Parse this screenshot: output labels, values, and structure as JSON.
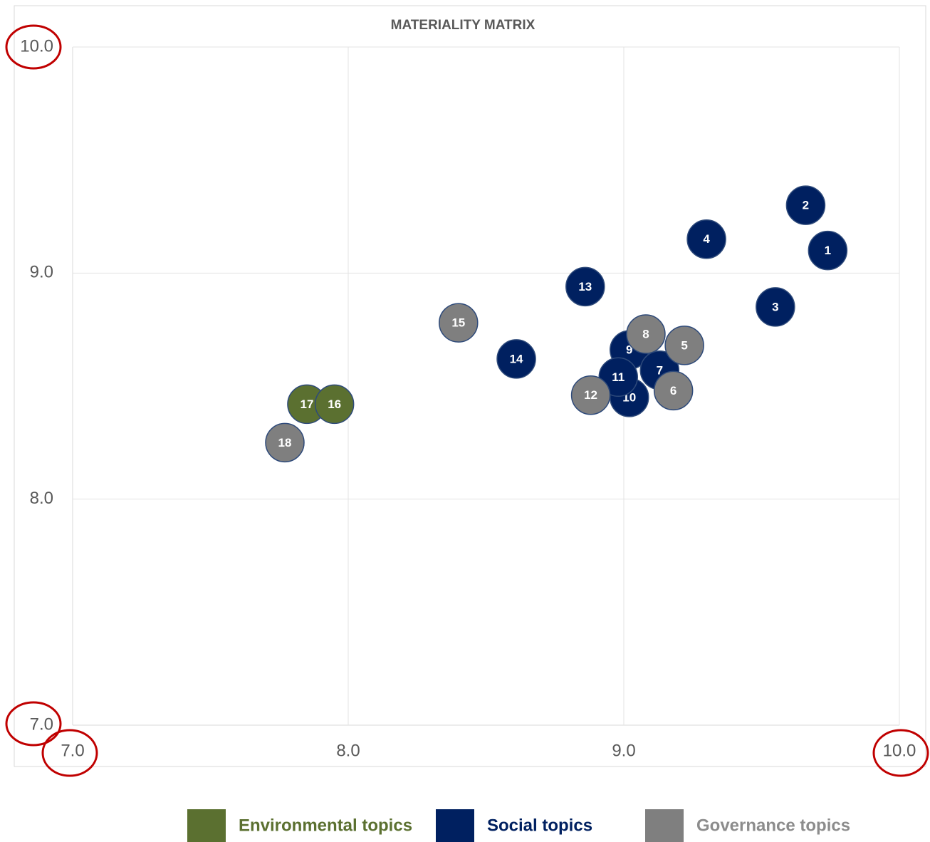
{
  "chart_data": {
    "type": "scatter",
    "title": "MATERIALITY MATRIX",
    "xlim": [
      7,
      10
    ],
    "ylim": [
      7,
      10
    ],
    "xticks": [
      {
        "value": 7,
        "label": "7.0"
      },
      {
        "value": 8,
        "label": "8.0"
      },
      {
        "value": 9,
        "label": "9.0"
      },
      {
        "value": 10,
        "label": "10.0"
      }
    ],
    "yticks": [
      {
        "value": 7,
        "label": "7.0"
      },
      {
        "value": 8,
        "label": "8.0"
      },
      {
        "value": 9,
        "label": "9.0"
      },
      {
        "value": 10,
        "label": "10.0"
      }
    ],
    "grid": true,
    "legend": "bottom",
    "series": [
      {
        "name": "Environmental topics",
        "color": "#5b7030",
        "labels": [
          "17",
          "16"
        ],
        "x": [
          7.85,
          7.95
        ],
        "values": [
          8.42,
          8.42
        ]
      },
      {
        "name": "Social topics",
        "color": "#002060",
        "labels": [
          "1",
          "2",
          "3",
          "4",
          "13",
          "14",
          "9",
          "7",
          "10",
          "11"
        ],
        "x": [
          9.74,
          9.66,
          9.55,
          9.3,
          8.86,
          8.61,
          9.02,
          9.13,
          9.02,
          8.98
        ],
        "values": [
          9.1,
          9.3,
          8.85,
          9.15,
          8.94,
          8.62,
          8.66,
          8.57,
          8.45,
          8.54
        ]
      },
      {
        "name": "Governance topics",
        "color": "#7f7f7f",
        "labels": [
          "15",
          "18",
          "12",
          "6",
          "5",
          "8"
        ],
        "x": [
          8.4,
          7.77,
          8.88,
          9.18,
          9.22,
          9.08
        ],
        "values": [
          8.78,
          8.25,
          8.46,
          8.48,
          8.68,
          8.73
        ]
      }
    ]
  }
}
